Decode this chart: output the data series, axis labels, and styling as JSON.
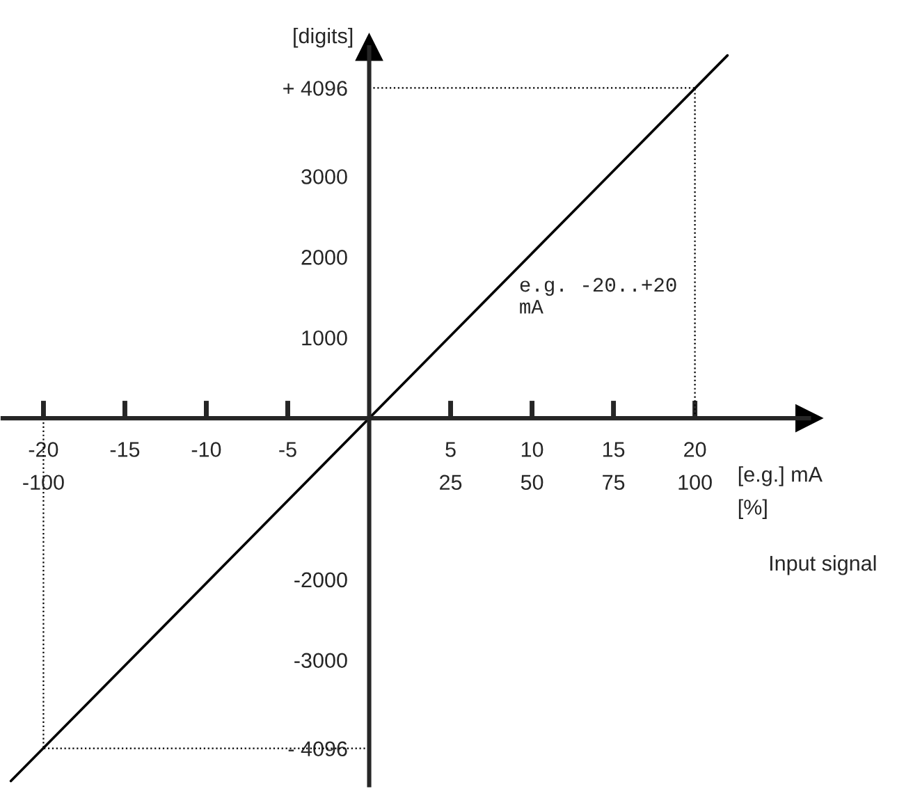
{
  "chart_data": {
    "type": "line",
    "ylabel": "[digits]",
    "xlabel": "[e.g.] mA",
    "annotations": [
      "e.g. -20..+20\nmA",
      "[%]",
      "Input signal"
    ],
    "x": [
      -22,
      22
    ],
    "series": [
      {
        "color": "#000000",
        "values": [
          -4500,
          4500
        ]
      }
    ],
    "x2lim": [
      -112.5,
      135
    ],
    "x2ticks": [
      -100,
      25,
      50,
      75,
      100
    ],
    "xlim": [
      -22.5,
      27
    ],
    "ylim": [
      -4550,
      4600
    ],
    "xticks": [
      -20,
      -15,
      -10,
      -5,
      5,
      10,
      15,
      20
    ],
    "yticks": [
      {
        "value": 4096,
        "label": "+ 4096"
      },
      3000,
      2000,
      1000,
      -2000,
      -3000,
      {
        "value": -4096,
        "label": "- 4096"
      }
    ],
    "ref_lines": [
      {
        "axis": "x",
        "value": 20,
        "color": "#000000",
        "line_style": "dotted"
      },
      {
        "axis": "x",
        "value": -20,
        "color": "#000000",
        "line_style": "dotted"
      },
      {
        "axis": "y",
        "value": 4096,
        "color": "#000000",
        "line_style": "dotted"
      },
      {
        "axis": "y",
        "value": -4096,
        "color": "#000000",
        "line_style": "dotted"
      }
    ],
    "grid": false,
    "legend": false,
    "marker": "none",
    "line_style": "solid"
  }
}
